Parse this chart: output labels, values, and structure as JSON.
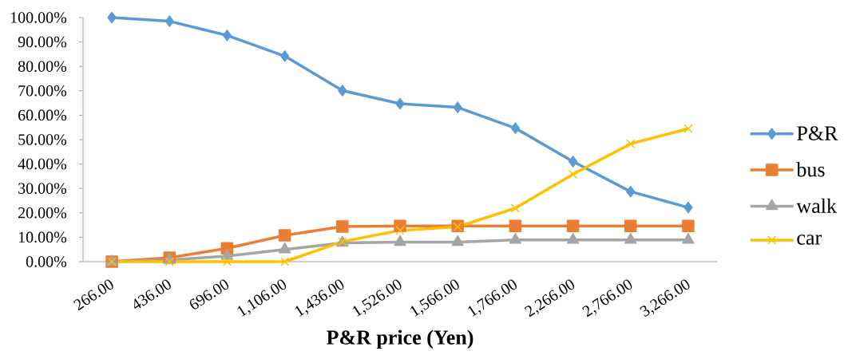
{
  "chart_data": {
    "type": "line",
    "xlabel": "P&R price (Yen)",
    "categories": [
      "266.00",
      "436.00",
      "696.00",
      "1,106.00",
      "1,436.00",
      "1,526.00",
      "1,566.00",
      "1,766.00",
      "2,266.00",
      "2,766.00",
      "3,266.00"
    ],
    "series": [
      {
        "name": "P&R",
        "color": "#5b9bd5",
        "marker": "diamond",
        "values": [
          100,
          98.5,
          92.7,
          84.2,
          70.1,
          64.7,
          63.2,
          54.7,
          41.0,
          28.7,
          22.2
        ]
      },
      {
        "name": "bus",
        "color": "#ed7d31",
        "marker": "square",
        "values": [
          0,
          1.6,
          5.5,
          10.8,
          14.4,
          14.6,
          14.6,
          14.6,
          14.6,
          14.6,
          14.6
        ]
      },
      {
        "name": "walk",
        "color": "#a5a5a5",
        "marker": "triangle",
        "values": [
          0,
          0.7,
          2.3,
          5.0,
          7.7,
          8.0,
          8.0,
          8.9,
          8.9,
          8.9,
          8.9
        ]
      },
      {
        "name": "car",
        "color": "#ffc000",
        "marker": "cross",
        "values": [
          0,
          0,
          0,
          0,
          8.2,
          12.8,
          14.3,
          21.9,
          35.8,
          48.3,
          54.5
        ]
      }
    ],
    "ylim": [
      0,
      100
    ],
    "yticks": [
      {
        "value": 0,
        "label": "0.00%"
      },
      {
        "value": 10,
        "label": "10.00%"
      },
      {
        "value": 20,
        "label": "20.00%"
      },
      {
        "value": 30,
        "label": "30.00%"
      },
      {
        "value": 40,
        "label": "40.00%"
      },
      {
        "value": 50,
        "label": "50.00%"
      },
      {
        "value": 60,
        "label": "60.00%"
      },
      {
        "value": 70,
        "label": "70.00%"
      },
      {
        "value": 80,
        "label": "80.00%"
      },
      {
        "value": 90,
        "label": "90.00%"
      },
      {
        "value": 100,
        "label": "100.00%"
      }
    ],
    "legend": "right",
    "line_style": "solid"
  }
}
